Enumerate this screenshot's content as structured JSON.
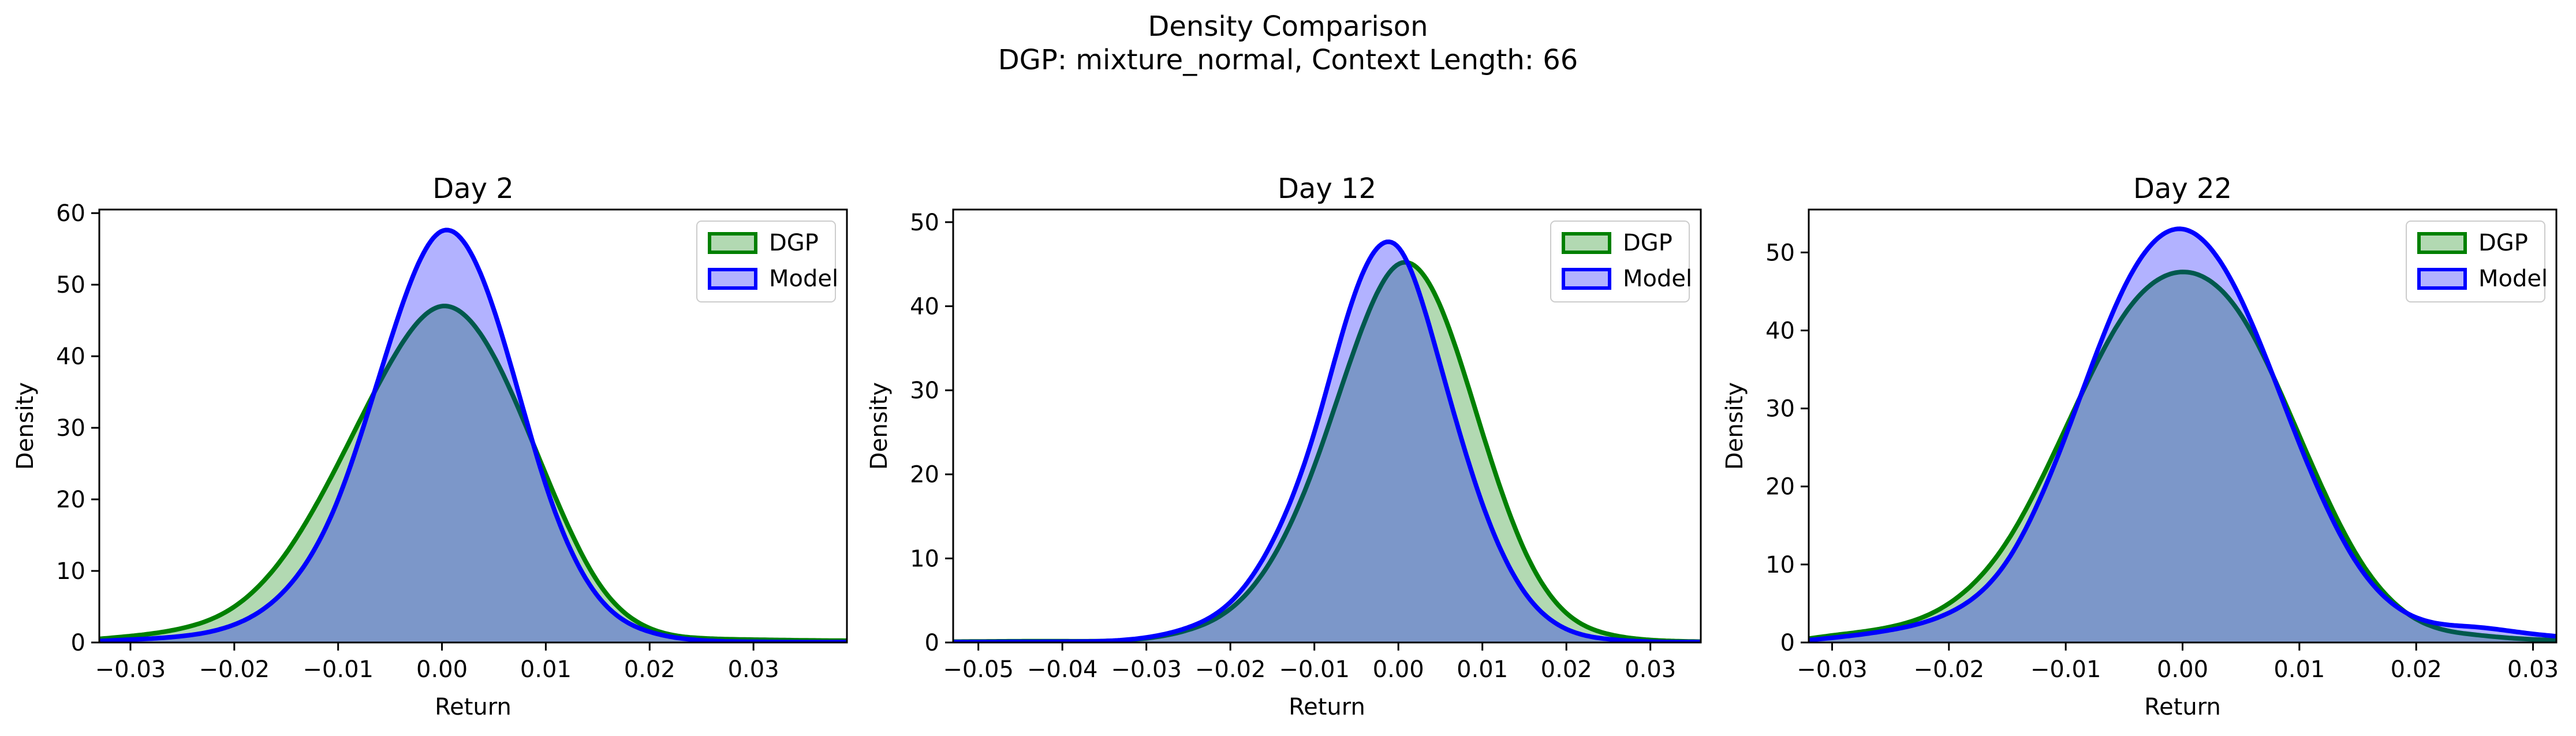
{
  "figure": {
    "suptitle_line1": "Density Comparison",
    "suptitle_line2": "DGP: mixture_normal, Context Length: 66"
  },
  "colors": {
    "dgp_line": "#008000",
    "dgp_fill": "#008000",
    "model_line": "#0000ff",
    "model_fill": "#0000ff",
    "axes": "#000000"
  },
  "chart_data": [
    {
      "type": "area",
      "title": "Day 2",
      "xlabel": "Return",
      "ylabel": "Density",
      "xlim": [
        -0.033,
        0.039
      ],
      "ylim": [
        0,
        60.5
      ],
      "xticks": [
        -0.03,
        -0.02,
        -0.01,
        0.0,
        0.01,
        0.02,
        0.03
      ],
      "xtick_labels": [
        "−0.03",
        "−0.02",
        "−0.01",
        "0.00",
        "0.01",
        "0.02",
        "0.03"
      ],
      "yticks": [
        0,
        10,
        20,
        30,
        40,
        50,
        60
      ],
      "ytick_labels": [
        "0",
        "10",
        "20",
        "30",
        "40",
        "50",
        "60"
      ],
      "legend": "top-right",
      "grid": false,
      "series": [
        {
          "name": "DGP",
          "x": [
            -0.033,
            -0.03,
            -0.025,
            -0.02,
            -0.015,
            -0.01,
            -0.005,
            0.0,
            0.005,
            0.01,
            0.015,
            0.02,
            0.025,
            0.03,
            0.035,
            0.039
          ],
          "y": [
            0.5,
            0.9,
            2.0,
            5.0,
            12.5,
            25.0,
            39.0,
            47.0,
            40.0,
            23.5,
            8.5,
            2.0,
            0.6,
            0.4,
            0.3,
            0.25
          ]
        },
        {
          "name": "Model",
          "x": [
            -0.033,
            -0.03,
            -0.025,
            -0.02,
            -0.015,
            -0.01,
            -0.005,
            0.0,
            0.005,
            0.01,
            0.015,
            0.02,
            0.025,
            0.03,
            0.035,
            0.039
          ],
          "y": [
            0.2,
            0.4,
            0.9,
            2.5,
            7.5,
            20.0,
            42.0,
            57.5,
            46.5,
            22.0,
            6.5,
            1.5,
            0.3,
            0.1,
            0.05,
            0.05
          ]
        }
      ]
    },
    {
      "type": "area",
      "title": "Day 12",
      "xlabel": "Return",
      "ylabel": "Density",
      "xlim": [
        -0.053,
        0.036
      ],
      "ylim": [
        0,
        51.5
      ],
      "xticks": [
        -0.05,
        -0.04,
        -0.03,
        -0.02,
        -0.01,
        0.0,
        0.01,
        0.02,
        0.03
      ],
      "xtick_labels": [
        "−0.05",
        "−0.04",
        "−0.03",
        "−0.02",
        "−0.01",
        "0.00",
        "0.01",
        "0.02",
        "0.03"
      ],
      "yticks": [
        0,
        10,
        20,
        30,
        40,
        50
      ],
      "ytick_labels": [
        "0",
        "10",
        "20",
        "30",
        "40",
        "50"
      ],
      "legend": "top-right",
      "grid": false,
      "series": [
        {
          "name": "DGP",
          "x": [
            -0.053,
            -0.04,
            -0.03,
            -0.025,
            -0.02,
            -0.015,
            -0.01,
            -0.005,
            0.0,
            0.005,
            0.01,
            0.015,
            0.02,
            0.025,
            0.03,
            0.036
          ],
          "y": [
            0.1,
            0.15,
            0.5,
            1.5,
            4.0,
            10.0,
            21.0,
            35.5,
            45.0,
            40.0,
            25.0,
            11.0,
            3.5,
            1.0,
            0.3,
            0.1
          ]
        },
        {
          "name": "Model",
          "x": [
            -0.053,
            -0.04,
            -0.03,
            -0.025,
            -0.02,
            -0.015,
            -0.01,
            -0.005,
            0.0,
            0.005,
            0.01,
            0.015,
            0.02,
            0.025,
            0.03,
            0.036
          ],
          "y": [
            0.05,
            0.1,
            0.6,
            1.8,
            4.8,
            12.0,
            25.0,
            42.0,
            47.0,
            33.0,
            16.5,
            6.0,
            1.6,
            0.4,
            0.1,
            0.05
          ]
        }
      ]
    },
    {
      "type": "area",
      "title": "Day 22",
      "xlabel": "Return",
      "ylabel": "Density",
      "xlim": [
        -0.032,
        0.032
      ],
      "ylim": [
        0,
        55.5
      ],
      "xticks": [
        -0.03,
        -0.02,
        -0.01,
        0.0,
        0.01,
        0.02,
        0.03
      ],
      "xtick_labels": [
        "−0.03",
        "−0.02",
        "−0.01",
        "0.00",
        "0.01",
        "0.02",
        "0.03"
      ],
      "yticks": [
        0,
        10,
        20,
        30,
        40,
        50
      ],
      "ytick_labels": [
        "0",
        "10",
        "20",
        "30",
        "40",
        "50"
      ],
      "legend": "top-right",
      "grid": false,
      "series": [
        {
          "name": "DGP",
          "x": [
            -0.032,
            -0.03,
            -0.025,
            -0.02,
            -0.015,
            -0.01,
            -0.005,
            0.0,
            0.005,
            0.01,
            0.015,
            0.02,
            0.025,
            0.03,
            0.032
          ],
          "y": [
            0.5,
            0.9,
            2.0,
            5.0,
            13.0,
            27.5,
            42.0,
            47.5,
            42.0,
            26.5,
            11.0,
            3.0,
            1.0,
            0.4,
            0.3
          ]
        },
        {
          "name": "Model",
          "x": [
            -0.032,
            -0.03,
            -0.025,
            -0.02,
            -0.015,
            -0.01,
            -0.005,
            0.0,
            0.005,
            0.01,
            0.015,
            0.02,
            0.025,
            0.03,
            0.032
          ],
          "y": [
            0.3,
            0.6,
            1.6,
            3.8,
            10.5,
            26.5,
            45.5,
            53.0,
            44.0,
            25.5,
            10.0,
            3.2,
            2.0,
            1.1,
            0.8
          ]
        }
      ]
    }
  ]
}
